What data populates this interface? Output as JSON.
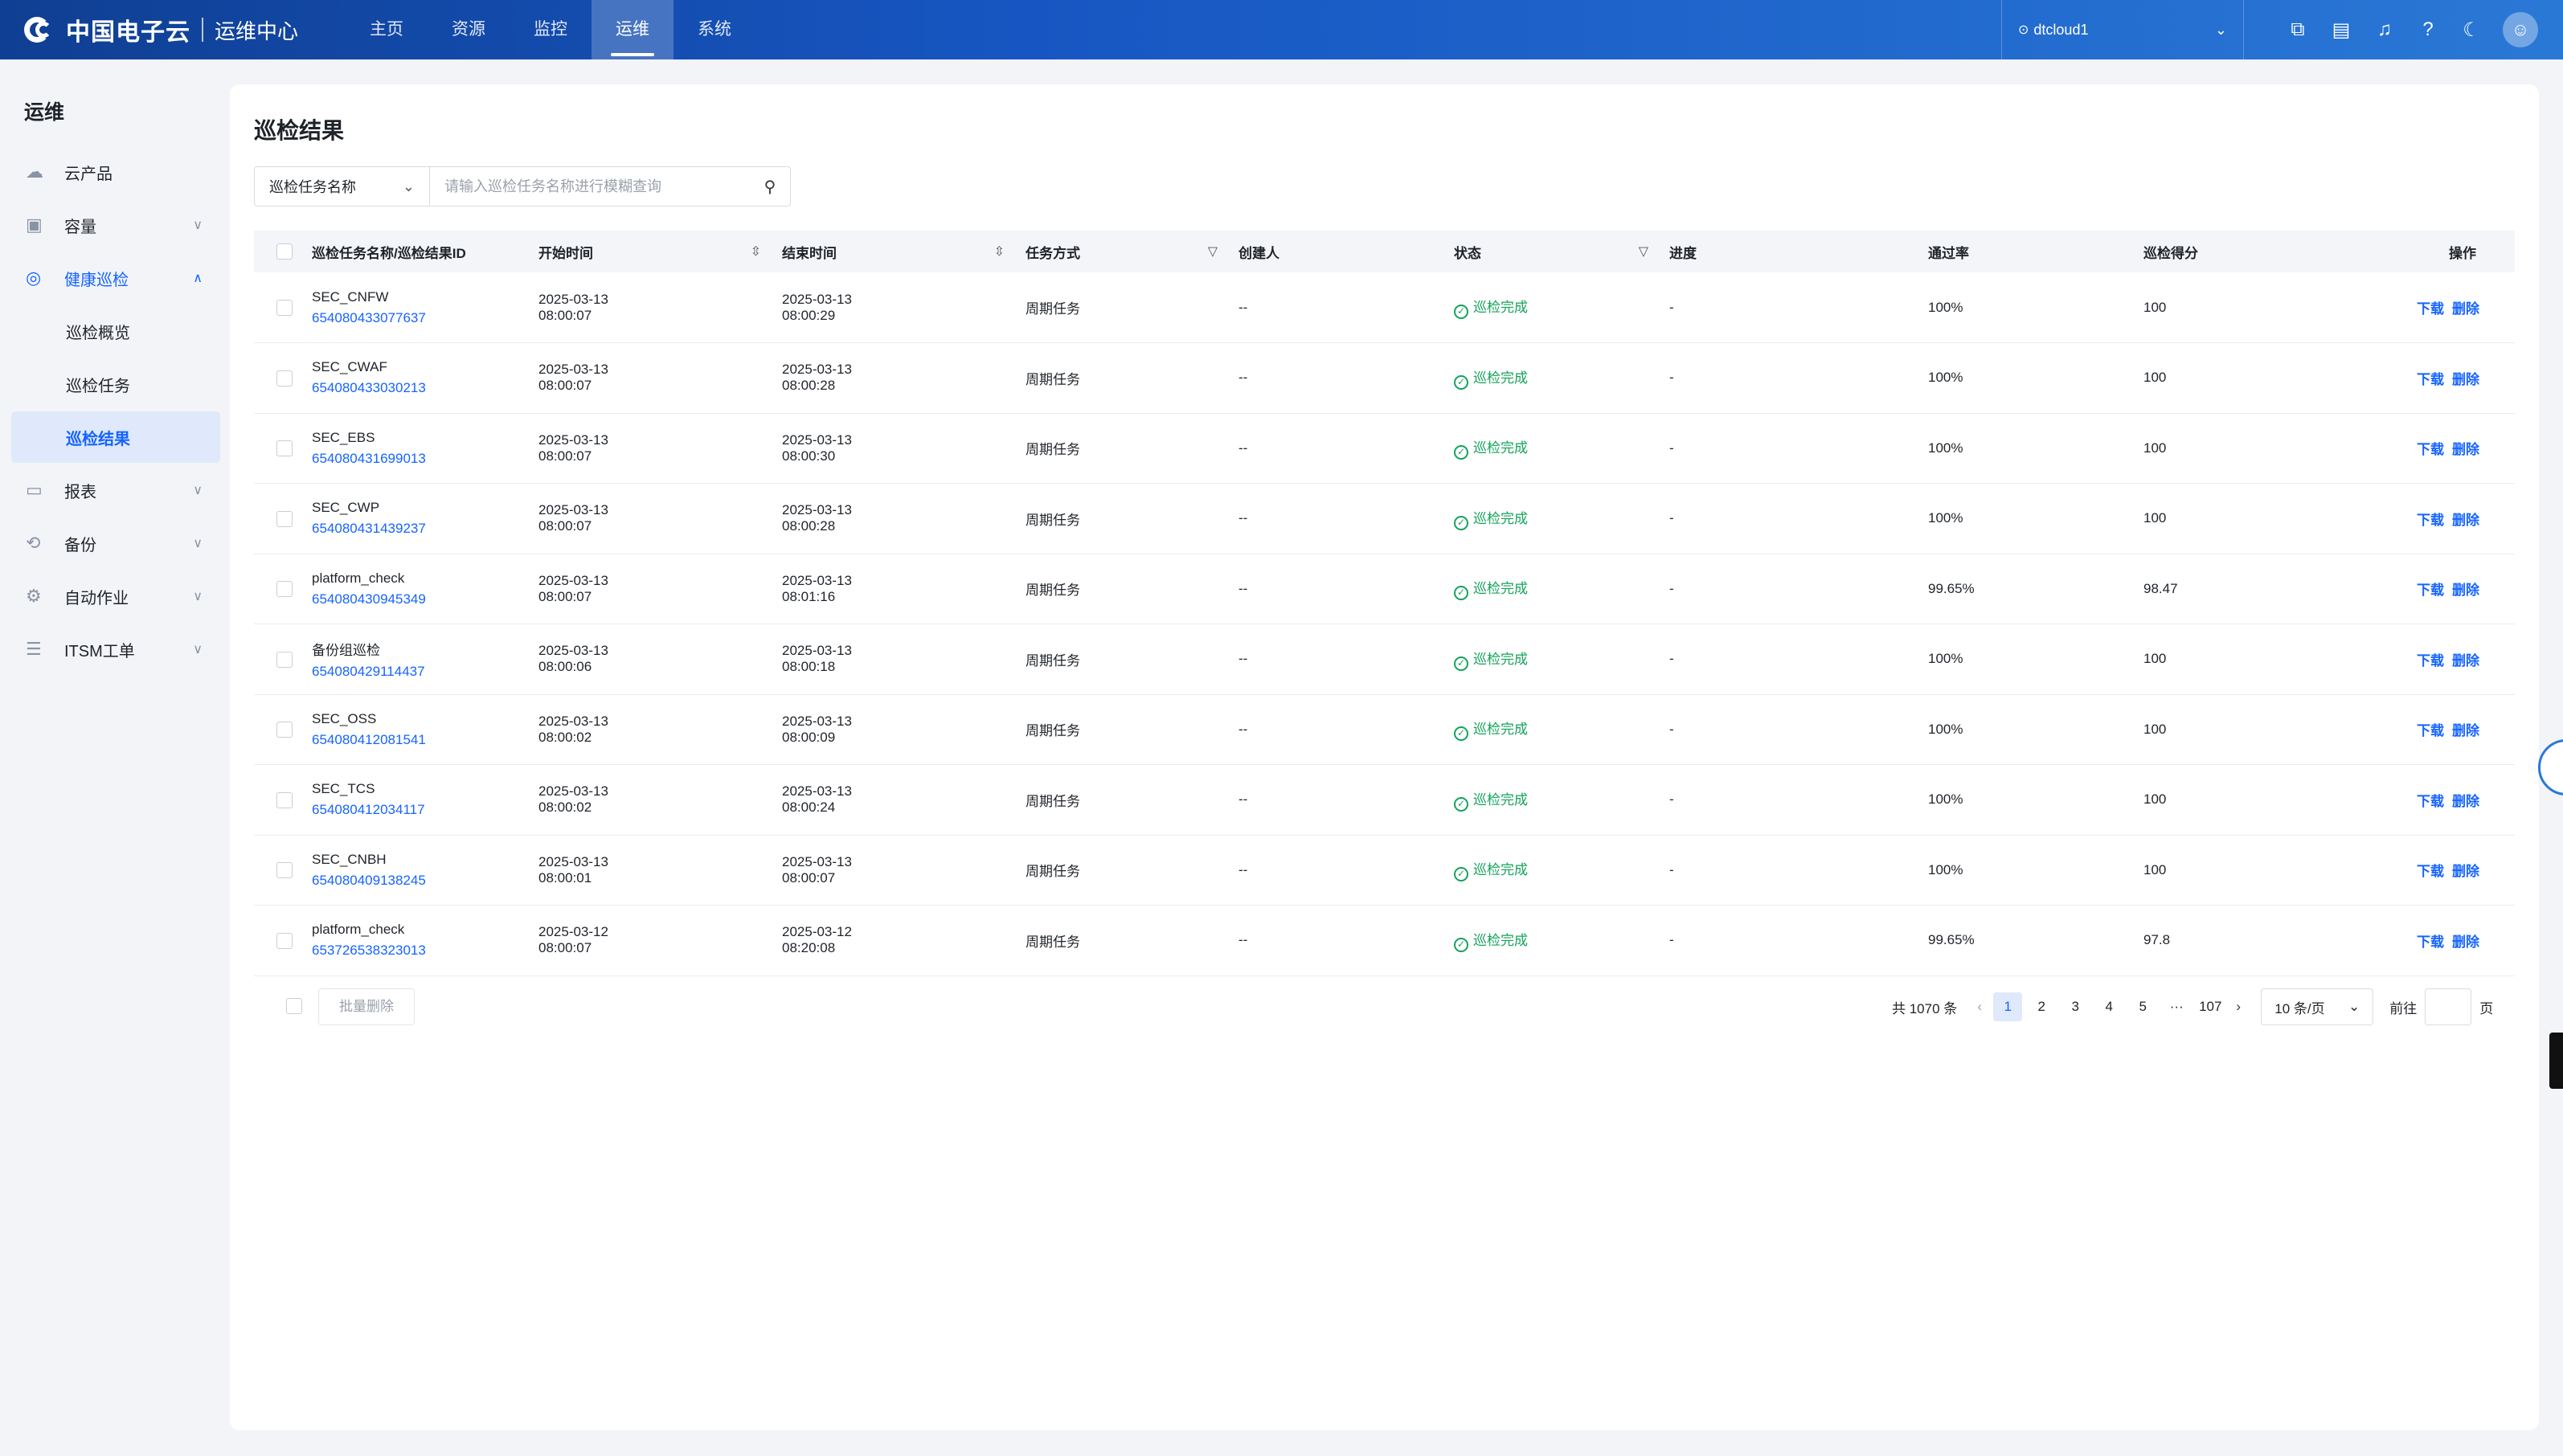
{
  "header": {
    "brand": "中国电子云",
    "subtitle": "运维中心",
    "nav": [
      "主页",
      "资源",
      "监控",
      "运维",
      "系统"
    ],
    "active_nav": "运维",
    "region": "dtcloud1"
  },
  "sidebar": {
    "title": "运维",
    "items": [
      {
        "label": "云产品",
        "icon": "cloud-icon"
      },
      {
        "label": "容量",
        "icon": "box-icon"
      },
      {
        "label": "健康巡检",
        "icon": "target-icon"
      },
      {
        "label": "巡检概览"
      },
      {
        "label": "巡检任务"
      },
      {
        "label": "巡检结果"
      },
      {
        "label": "报表",
        "icon": "report-icon"
      },
      {
        "label": "备份",
        "icon": "backup-icon"
      },
      {
        "label": "自动作业",
        "icon": "automation-icon"
      },
      {
        "label": "ITSM工单",
        "icon": "ticket-icon"
      }
    ]
  },
  "main": {
    "title": "巡检结果",
    "search": {
      "field": "巡检任务名称",
      "placeholder": "请输入巡检任务名称进行模糊查询"
    },
    "columns": [
      "巡检任务名称/巡检结果ID",
      "开始时间",
      "结束时间",
      "任务方式",
      "创建人",
      "状态",
      "进度",
      "通过率",
      "巡检得分",
      "操作"
    ],
    "rows": [
      {
        "name": "SEC_CNFW",
        "id": "654080433077637",
        "start_date": "2025-03-13",
        "start_time": "08:00:07",
        "end_date": "2025-03-13",
        "end_time": "08:00:29",
        "mode": "周期任务",
        "creator": "--",
        "status": "巡检完成",
        "progress": "-",
        "pass_rate": "100%",
        "score": "100"
      },
      {
        "name": "SEC_CWAF",
        "id": "654080433030213",
        "start_date": "2025-03-13",
        "start_time": "08:00:07",
        "end_date": "2025-03-13",
        "end_time": "08:00:28",
        "mode": "周期任务",
        "creator": "--",
        "status": "巡检完成",
        "progress": "-",
        "pass_rate": "100%",
        "score": "100"
      },
      {
        "name": "SEC_EBS",
        "id": "654080431699013",
        "start_date": "2025-03-13",
        "start_time": "08:00:07",
        "end_date": "2025-03-13",
        "end_time": "08:00:30",
        "mode": "周期任务",
        "creator": "--",
        "status": "巡检完成",
        "progress": "-",
        "pass_rate": "100%",
        "score": "100"
      },
      {
        "name": "SEC_CWP",
        "id": "654080431439237",
        "start_date": "2025-03-13",
        "start_time": "08:00:07",
        "end_date": "2025-03-13",
        "end_time": "08:00:28",
        "mode": "周期任务",
        "creator": "--",
        "status": "巡检完成",
        "progress": "-",
        "pass_rate": "100%",
        "score": "100"
      },
      {
        "name": "platform_check",
        "id": "654080430945349",
        "start_date": "2025-03-13",
        "start_time": "08:00:07",
        "end_date": "2025-03-13",
        "end_time": "08:01:16",
        "mode": "周期任务",
        "creator": "--",
        "status": "巡检完成",
        "progress": "-",
        "pass_rate": "99.65%",
        "score": "98.47"
      },
      {
        "name": "备份组巡检",
        "id": "654080429114437",
        "start_date": "2025-03-13",
        "start_time": "08:00:06",
        "end_date": "2025-03-13",
        "end_time": "08:00:18",
        "mode": "周期任务",
        "creator": "--",
        "status": "巡检完成",
        "progress": "-",
        "pass_rate": "100%",
        "score": "100"
      },
      {
        "name": "SEC_OSS",
        "id": "654080412081541",
        "start_date": "2025-03-13",
        "start_time": "08:00:02",
        "end_date": "2025-03-13",
        "end_time": "08:00:09",
        "mode": "周期任务",
        "creator": "--",
        "status": "巡检完成",
        "progress": "-",
        "pass_rate": "100%",
        "score": "100"
      },
      {
        "name": "SEC_TCS",
        "id": "654080412034117",
        "start_date": "2025-03-13",
        "start_time": "08:00:02",
        "end_date": "2025-03-13",
        "end_time": "08:00:24",
        "mode": "周期任务",
        "creator": "--",
        "status": "巡检完成",
        "progress": "-",
        "pass_rate": "100%",
        "score": "100"
      },
      {
        "name": "SEC_CNBH",
        "id": "654080409138245",
        "start_date": "2025-03-13",
        "start_time": "08:00:01",
        "end_date": "2025-03-13",
        "end_time": "08:00:07",
        "mode": "周期任务",
        "creator": "--",
        "status": "巡检完成",
        "progress": "-",
        "pass_rate": "100%",
        "score": "100"
      },
      {
        "name": "platform_check",
        "id": "653726538323013",
        "start_date": "2025-03-12",
        "start_time": "08:00:07",
        "end_date": "2025-03-12",
        "end_time": "08:20:08",
        "mode": "周期任务",
        "creator": "--",
        "status": "巡检完成",
        "progress": "-",
        "pass_rate": "99.65%",
        "score": "97.8"
      }
    ],
    "actions": {
      "download": "下载",
      "delete": "删除"
    },
    "batch_delete": "批量删除",
    "pagination": {
      "total": "共 1070 条",
      "pages": [
        "1",
        "2",
        "3",
        "4",
        "5",
        "···",
        "107"
      ],
      "current": "1",
      "page_size": "10 条/页",
      "goto_label": "前往",
      "page_suffix": "页"
    }
  },
  "colors": {
    "accent": "#1664ff",
    "success": "#14a35b",
    "header": "#1756c2"
  }
}
